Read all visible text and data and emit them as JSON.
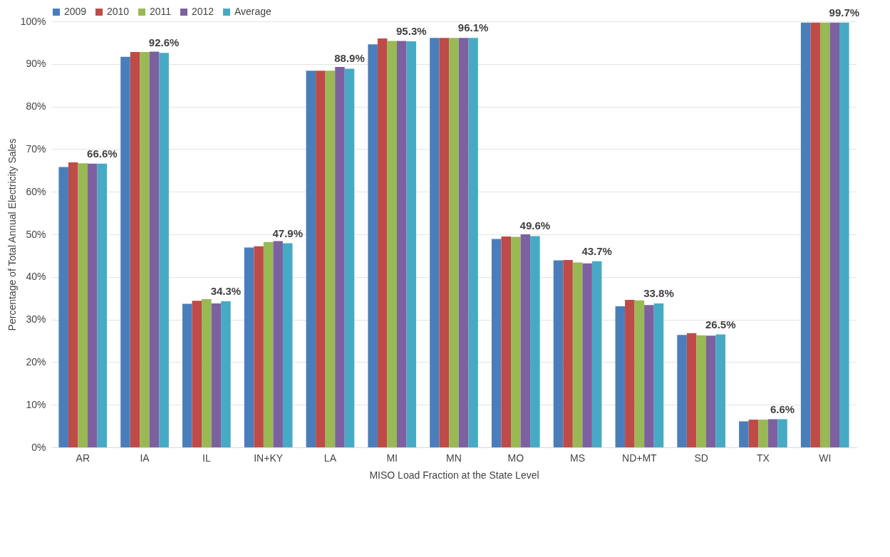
{
  "chart_data": {
    "type": "bar",
    "xlabel": "MISO Load Fraction at the State Level",
    "ylabel": "Percentage of Total  Annual Electricity Sales",
    "categories": [
      "AR",
      "IA",
      "IL",
      "IN+KY",
      "LA",
      "MI",
      "MN",
      "MO",
      "MS",
      "ND+MT",
      "SD",
      "TX",
      "WI"
    ],
    "series": [
      {
        "name": "2009",
        "color": "#4a7ebb",
        "values": [
          65.8,
          91.7,
          33.7,
          46.9,
          88.4,
          94.6,
          96.1,
          48.9,
          43.9,
          33.1,
          26.4,
          6.1,
          99.7
        ]
      },
      {
        "name": "2010",
        "color": "#be4b48",
        "values": [
          66.9,
          92.8,
          34.4,
          47.2,
          88.4,
          96.0,
          96.1,
          49.5,
          44.0,
          34.6,
          26.8,
          6.5,
          99.7
        ]
      },
      {
        "name": "2011",
        "color": "#98b954",
        "values": [
          66.7,
          92.8,
          34.8,
          48.2,
          88.4,
          95.4,
          96.1,
          49.4,
          43.4,
          34.5,
          26.3,
          6.5,
          99.7
        ]
      },
      {
        "name": "2012",
        "color": "#7d60a0",
        "values": [
          66.6,
          92.9,
          33.8,
          48.4,
          89.3,
          95.4,
          96.1,
          50.0,
          43.2,
          33.4,
          26.2,
          6.6,
          99.7
        ]
      },
      {
        "name": "Average",
        "color": "#46aac5",
        "values": [
          66.6,
          92.6,
          34.3,
          47.9,
          88.9,
          95.3,
          96.1,
          49.6,
          43.7,
          33.8,
          26.5,
          6.6,
          99.7
        ],
        "value_labels": [
          "66.6%",
          "92.6%",
          "34.3%",
          "47.9%",
          "88.9%",
          "95.3%",
          "96.1%",
          "49.6%",
          "43.7%",
          "33.8%",
          "26.5%",
          "6.6%",
          "99.7%"
        ]
      }
    ],
    "ylim": [
      0,
      100
    ],
    "yticks": [
      {
        "value": 0,
        "label": "0%"
      },
      {
        "value": 10,
        "label": "10%"
      },
      {
        "value": 20,
        "label": "20%"
      },
      {
        "value": 30,
        "label": "30%"
      },
      {
        "value": 40,
        "label": "40%"
      },
      {
        "value": 50,
        "label": "50%"
      },
      {
        "value": 60,
        "label": "60%"
      },
      {
        "value": 70,
        "label": "70%"
      },
      {
        "value": 80,
        "label": "80%"
      },
      {
        "value": 90,
        "label": "90%"
      },
      {
        "value": 100,
        "label": "100%"
      }
    ],
    "grid": "y",
    "legend": "top"
  }
}
